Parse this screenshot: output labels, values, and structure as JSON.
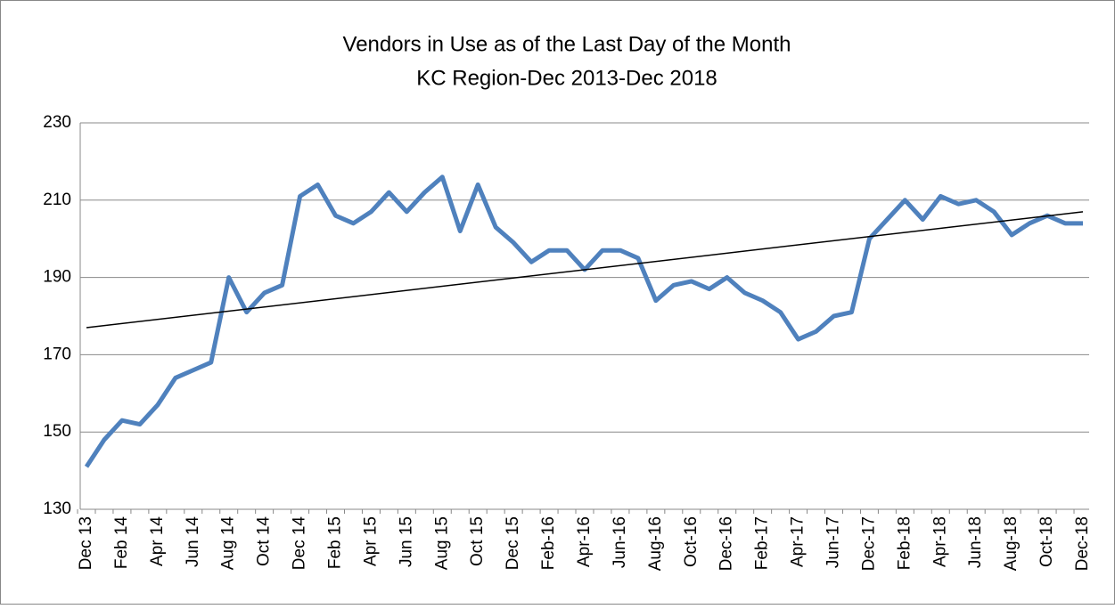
{
  "chart_data": {
    "type": "line",
    "title": "Vendors in Use as of the Last Day of the Month",
    "subtitle": "KC Region-Dec 2013-Dec 2018",
    "categories": [
      "Dec 13",
      null,
      "Feb 14",
      null,
      "Apr 14",
      null,
      "Jun 14",
      null,
      "Aug 14",
      null,
      "Oct 14",
      null,
      "Dec 14",
      null,
      "Feb 15",
      null,
      "Apr 15",
      null,
      "Jun 15",
      null,
      "Aug 15",
      null,
      "Oct 15",
      null,
      "Dec 15",
      null,
      "Feb-16",
      null,
      "Apr-16",
      null,
      "Jun-16",
      null,
      "Aug-16",
      null,
      "Oct-16",
      null,
      "Dec-16",
      null,
      "Feb-17",
      null,
      "Apr-17",
      null,
      "Jun-17",
      null,
      "Dec-17",
      null,
      "Feb-18",
      null,
      "Apr-18",
      null,
      "Jun-18",
      null,
      "Aug-18",
      null,
      "Oct-18",
      null,
      "Dec-18"
    ],
    "series": [
      {
        "color": "#4f81bd",
        "values": [
          141,
          148,
          153,
          152,
          157,
          164,
          166,
          168,
          190,
          181,
          186,
          188,
          211,
          214,
          206,
          204,
          207,
          212,
          207,
          212,
          216,
          202,
          214,
          203,
          199,
          194,
          197,
          197,
          192,
          197,
          197,
          195,
          184,
          188,
          189,
          187,
          190,
          186,
          184,
          181,
          174,
          176,
          180,
          181,
          200,
          205,
          210,
          205,
          211,
          209,
          210,
          207,
          201,
          204,
          206,
          204,
          204
        ]
      }
    ],
    "trendline": {
      "color": "#000000",
      "values": [
        177,
        207
      ]
    },
    "ylim": [
      130,
      230
    ],
    "yticks": [
      130,
      150,
      170,
      190,
      210,
      230
    ],
    "grid": true
  }
}
